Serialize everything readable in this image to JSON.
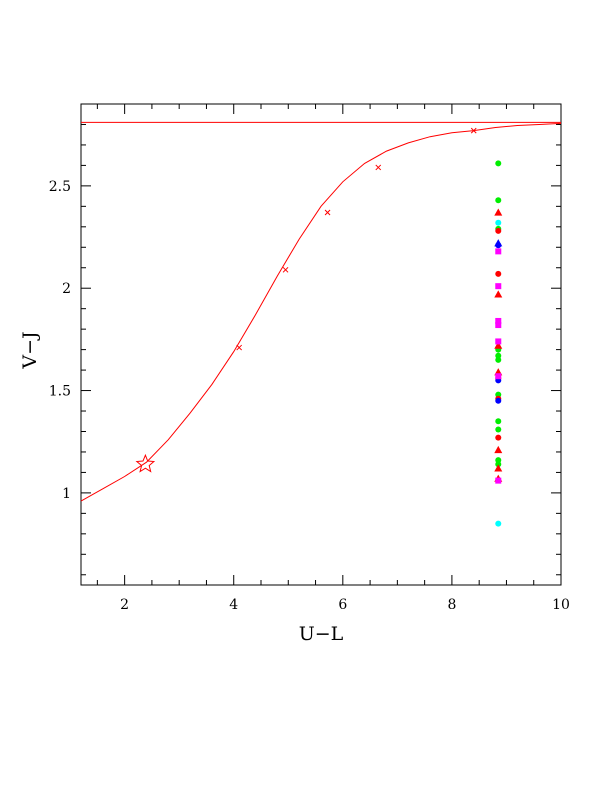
{
  "chart_data": {
    "type": "scatter",
    "xlabel": "U−L",
    "ylabel": "V−J",
    "xlim": [
      1.2,
      10.0
    ],
    "ylim": [
      0.55,
      2.9
    ],
    "xticks": [
      2,
      4,
      6,
      8,
      10
    ],
    "xtick_labels": [
      "2",
      "4",
      "6",
      "8",
      "10"
    ],
    "yticks": [
      1.0,
      1.5,
      2.0,
      2.5
    ],
    "ytick_labels": [
      "1",
      "1.5",
      "2",
      "2.5"
    ],
    "grid": false,
    "colors": {
      "axes": "#000000",
      "curve": "#ff0000",
      "green": "#00ee00",
      "red": "#ff0000",
      "blue": "#0000ff",
      "magenta": "#ff00ff",
      "cyan": "#00ffff"
    },
    "asymptote": {
      "y": 2.81
    },
    "curve": {
      "x": [
        1.2,
        1.6,
        2.0,
        2.4,
        2.8,
        3.2,
        3.6,
        4.0,
        4.4,
        4.8,
        5.2,
        5.6,
        6.0,
        6.4,
        6.8,
        7.2,
        7.6,
        8.0,
        8.4,
        8.8,
        9.2,
        9.6,
        10.0
      ],
      "y": [
        0.96,
        1.02,
        1.08,
        1.15,
        1.26,
        1.39,
        1.53,
        1.69,
        1.87,
        2.06,
        2.24,
        2.4,
        2.52,
        2.61,
        2.67,
        2.71,
        2.74,
        2.76,
        2.77,
        2.785,
        2.795,
        2.8,
        2.805
      ]
    },
    "tick_marks": {
      "x": [
        4.1,
        4.95,
        5.72,
        6.65,
        8.4
      ],
      "y": [
        1.71,
        2.09,
        2.37,
        2.59,
        2.77
      ]
    },
    "star": {
      "x": 2.38,
      "y": 1.14
    },
    "series": [
      {
        "color": "green",
        "marker": "circle",
        "x": [
          8.85,
          8.85,
          8.85,
          8.85,
          8.85,
          8.85,
          8.85,
          8.85,
          8.85,
          8.85,
          8.85
        ],
        "y": [
          2.61,
          2.43,
          2.29,
          1.7,
          1.67,
          1.48,
          1.35,
          1.31,
          1.16,
          1.65,
          1.14
        ]
      },
      {
        "color": "red",
        "marker": "triangle",
        "x": [
          8.85,
          8.85,
          8.85,
          8.85,
          8.85,
          8.85,
          8.85
        ],
        "y": [
          2.37,
          1.97,
          1.72,
          1.59,
          1.21,
          1.12,
          1.07
        ]
      },
      {
        "color": "red",
        "marker": "circle",
        "x": [
          8.85,
          8.85,
          8.85,
          8.85,
          8.85
        ],
        "y": [
          2.28,
          2.07,
          1.56,
          1.27,
          1.46
        ]
      },
      {
        "color": "blue",
        "marker": "triangle",
        "x": [
          8.85
        ],
        "y": [
          2.22
        ]
      },
      {
        "color": "blue",
        "marker": "circle",
        "x": [
          8.85,
          8.85,
          8.85
        ],
        "y": [
          2.21,
          1.55,
          1.45
        ]
      },
      {
        "color": "magenta",
        "marker": "square",
        "x": [
          8.85,
          8.85,
          8.85,
          8.85,
          8.85,
          8.85,
          8.85
        ],
        "y": [
          2.18,
          2.01,
          1.84,
          1.82,
          1.74,
          1.57,
          1.06
        ]
      },
      {
        "color": "cyan",
        "marker": "circle",
        "x": [
          8.85,
          8.85
        ],
        "y": [
          2.32,
          0.85
        ]
      }
    ]
  }
}
